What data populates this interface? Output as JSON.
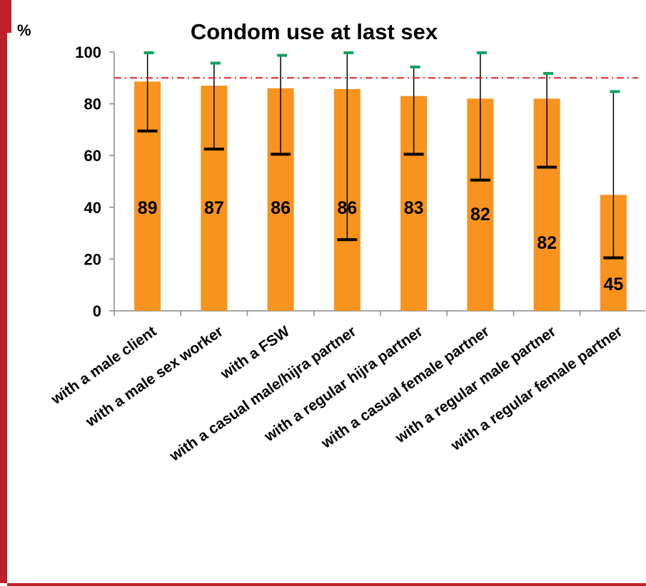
{
  "chart_data": {
    "type": "bar",
    "title": "Condom use at last sex",
    "ylabel": "%",
    "ylim": [
      0,
      100
    ],
    "yticks": [
      0,
      20,
      40,
      60,
      80,
      100
    ],
    "grid": false,
    "categories": [
      "with a male client",
      "with a male sex worker",
      "with a FSW",
      "with a casual male/hijra partner",
      "with a regular hijra partner",
      "with a casual female partner",
      "with a regular male partner",
      "with a regular female partner"
    ],
    "values": [
      88.6,
      87,
      86,
      85.7,
      83,
      82,
      82,
      44.8
    ],
    "data_labels": [
      "89",
      "87",
      "86",
      "86",
      "83",
      "82",
      "82",
      "45"
    ],
    "error_low": [
      69.5,
      62.5,
      60.5,
      27.5,
      60.5,
      50.5,
      55.5,
      20.5
    ],
    "error_high": [
      100,
      96,
      99,
      100,
      94.5,
      100,
      92,
      85
    ],
    "reference_line": 90,
    "colors": {
      "bar": "#f7931e",
      "axis": "#888888",
      "reference": "#e0202a",
      "high_marker": "#10a060",
      "error": "#000000"
    }
  }
}
